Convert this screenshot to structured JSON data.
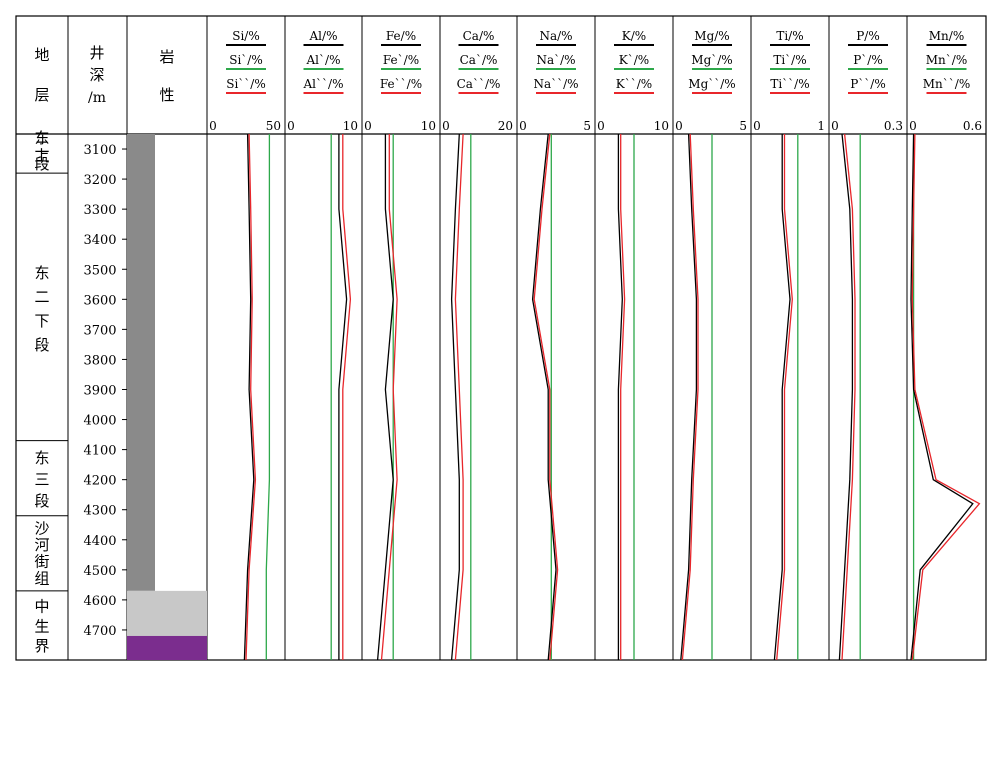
{
  "columns": {
    "strata": "地层",
    "depth": "井深/m",
    "lithology": "岩性"
  },
  "strata": [
    {
      "name": "东二上段",
      "top": 3050,
      "bottom": 3180
    },
    {
      "name": "东二下段",
      "top": 3180,
      "bottom": 4070
    },
    {
      "name": "东三段",
      "top": 4070,
      "bottom": 4320
    },
    {
      "name": "沙河街组",
      "top": 4320,
      "bottom": 4570
    },
    {
      "name": "中生界",
      "top": 4570,
      "bottom": 4800
    }
  ],
  "depth_ticks": [
    3100,
    3200,
    3300,
    3400,
    3500,
    3600,
    3700,
    3800,
    3900,
    4000,
    4100,
    4200,
    4300,
    4400,
    4500,
    4600,
    4700
  ],
  "colors": {
    "black_curve": "#000000",
    "green_curve": "#2da84a",
    "red_curve": "#e8262b",
    "lith_purple": "#7b2d8e",
    "lith_gray": "#8a8a8a"
  },
  "chart_data": {
    "type": "line",
    "y_axis": "井深/m",
    "ylim": [
      3050,
      4800
    ],
    "grid": false,
    "elements": [
      {
        "labels": [
          "Si/%",
          "Si`/%",
          "Si``/%"
        ],
        "ticks": [
          "0",
          "50"
        ],
        "xlim": [
          0,
          50
        ],
        "series": [
          {
            "color": "green",
            "depth": [
              3050,
              3300,
              3600,
              3900,
              4200,
              4500,
              4800
            ],
            "values": [
              40,
              40,
              40,
              40,
              40,
              38,
              38
            ]
          },
          {
            "color": "black",
            "depth": [
              3050,
              3300,
              3600,
              3900,
              4200,
              4500,
              4800
            ],
            "values": [
              26,
              27,
              28,
              27,
              30,
              26,
              24
            ]
          },
          {
            "color": "red",
            "depth": [
              3050,
              3300,
              3600,
              3900,
              4200,
              4500,
              4800
            ],
            "values": [
              27,
              28,
              29,
              28,
              31,
              27,
              25
            ]
          }
        ]
      },
      {
        "labels": [
          "Al/%",
          "Al`/%",
          "Al``/%"
        ],
        "ticks": [
          "0",
          "10"
        ],
        "xlim": [
          0,
          10
        ],
        "series": [
          {
            "color": "green",
            "depth": [
              3050,
              3300,
              3600,
              3900,
              4200,
              4500,
              4800
            ],
            "values": [
              6,
              6,
              6,
              6,
              6,
              6,
              6
            ]
          },
          {
            "color": "black",
            "depth": [
              3050,
              3300,
              3600,
              3900,
              4200,
              4500,
              4800
            ],
            "values": [
              7,
              7,
              8,
              7,
              7,
              7,
              7
            ]
          },
          {
            "color": "red",
            "depth": [
              3050,
              3300,
              3600,
              3900,
              4200,
              4500,
              4800
            ],
            "values": [
              7.5,
              7.5,
              8.5,
              7.5,
              7.5,
              7.5,
              7.5
            ]
          }
        ]
      },
      {
        "labels": [
          "Fe/%",
          "Fe`/%",
          "Fe``/%"
        ],
        "ticks": [
          "0",
          "10"
        ],
        "xlim": [
          0,
          10
        ],
        "series": [
          {
            "color": "green",
            "depth": [
              3050,
              3300,
              3600,
              3900,
              4200,
              4500,
              4800
            ],
            "values": [
              4,
              4,
              4,
              4,
              4,
              4,
              4
            ]
          },
          {
            "color": "black",
            "depth": [
              3050,
              3300,
              3600,
              3900,
              4200,
              4500,
              4800
            ],
            "values": [
              3,
              3,
              4,
              3,
              4,
              3,
              2
            ]
          },
          {
            "color": "red",
            "depth": [
              3050,
              3300,
              3600,
              3900,
              4200,
              4500,
              4800
            ],
            "values": [
              3.5,
              3.5,
              4.5,
              4,
              4.5,
              3.5,
              2.5
            ]
          }
        ]
      },
      {
        "labels": [
          "Ca/%",
          "Ca`/%",
          "Ca``/%"
        ],
        "ticks": [
          "0",
          "20"
        ],
        "xlim": [
          0,
          20
        ],
        "series": [
          {
            "color": "green",
            "depth": [
              3050,
              3300,
              3600,
              3900,
              4200,
              4500,
              4800
            ],
            "values": [
              8,
              8,
              8,
              8,
              8,
              8,
              8
            ]
          },
          {
            "color": "black",
            "depth": [
              3050,
              3300,
              3600,
              3900,
              4200,
              4500,
              4800
            ],
            "values": [
              5,
              4,
              3,
              4,
              5,
              5,
              3
            ]
          },
          {
            "color": "red",
            "depth": [
              3050,
              3300,
              3600,
              3900,
              4200,
              4500,
              4800
            ],
            "values": [
              6,
              5,
              4,
              5,
              6,
              6,
              4
            ]
          }
        ]
      },
      {
        "labels": [
          "Na/%",
          "Na`/%",
          "Na``/%"
        ],
        "ticks": [
          "0",
          "5"
        ],
        "xlim": [
          0,
          5
        ],
        "series": [
          {
            "color": "green",
            "depth": [
              3050,
              3300,
              3600,
              3900,
              4200,
              4500,
              4800
            ],
            "values": [
              2.2,
              2.2,
              2.2,
              2.2,
              2.2,
              2.2,
              2.2
            ]
          },
          {
            "color": "black",
            "depth": [
              3050,
              3300,
              3600,
              3900,
              4200,
              4500,
              4800
            ],
            "values": [
              2,
              1.5,
              1,
              2,
              2,
              2.5,
              2
            ]
          },
          {
            "color": "red",
            "depth": [
              3050,
              3300,
              3600,
              3900,
              4200,
              4500,
              4800
            ],
            "values": [
              2.1,
              1.6,
              1.1,
              2.1,
              2.1,
              2.6,
              2.1
            ]
          }
        ]
      },
      {
        "labels": [
          "K/%",
          "K`/%",
          "K``/%"
        ],
        "ticks": [
          "0",
          "10"
        ],
        "xlim": [
          0,
          10
        ],
        "series": [
          {
            "color": "green",
            "depth": [
              3050,
              3300,
              3600,
              3900,
              4200,
              4500,
              4800
            ],
            "values": [
              5,
              5,
              5,
              5,
              5,
              5,
              5
            ]
          },
          {
            "color": "black",
            "depth": [
              3050,
              3300,
              3600,
              3900,
              4200,
              4500,
              4800
            ],
            "values": [
              3,
              3,
              3.5,
              3,
              3,
              3,
              3
            ]
          },
          {
            "color": "red",
            "depth": [
              3050,
              3300,
              3600,
              3900,
              4200,
              4500,
              4800
            ],
            "values": [
              3.3,
              3.3,
              3.8,
              3.3,
              3.3,
              3.3,
              3.3
            ]
          }
        ]
      },
      {
        "labels": [
          "Mg/%",
          "Mg`/%",
          "Mg``/%"
        ],
        "ticks": [
          "0",
          "5"
        ],
        "xlim": [
          0,
          5
        ],
        "series": [
          {
            "color": "green",
            "depth": [
              3050,
              3300,
              3600,
              3900,
              4200,
              4500,
              4800
            ],
            "values": [
              2.5,
              2.5,
              2.5,
              2.5,
              2.5,
              2.5,
              2.5
            ]
          },
          {
            "color": "black",
            "depth": [
              3050,
              3300,
              3600,
              3900,
              4200,
              4500,
              4800
            ],
            "values": [
              1,
              1.2,
              1.5,
              1.5,
              1.2,
              1,
              0.5
            ]
          },
          {
            "color": "red",
            "depth": [
              3050,
              3300,
              3600,
              3900,
              4200,
              4500,
              4800
            ],
            "values": [
              1.1,
              1.3,
              1.6,
              1.6,
              1.3,
              1.1,
              0.6
            ]
          }
        ]
      },
      {
        "labels": [
          "Ti/%",
          "Ti`/%",
          "Ti``/%"
        ],
        "ticks": [
          "0",
          "1"
        ],
        "xlim": [
          0,
          1
        ],
        "series": [
          {
            "color": "green",
            "depth": [
              3050,
              3300,
              3600,
              3900,
              4200,
              4500,
              4800
            ],
            "values": [
              0.6,
              0.6,
              0.6,
              0.6,
              0.6,
              0.6,
              0.6
            ]
          },
          {
            "color": "black",
            "depth": [
              3050,
              3300,
              3600,
              3900,
              4200,
              4500,
              4800
            ],
            "values": [
              0.4,
              0.4,
              0.5,
              0.4,
              0.4,
              0.4,
              0.3
            ]
          },
          {
            "color": "red",
            "depth": [
              3050,
              3300,
              3600,
              3900,
              4200,
              4500,
              4800
            ],
            "values": [
              0.43,
              0.43,
              0.53,
              0.43,
              0.43,
              0.43,
              0.33
            ]
          }
        ]
      },
      {
        "labels": [
          "P/%",
          "P`/%",
          "P``/%"
        ],
        "ticks": [
          "0",
          "0.3"
        ],
        "xlim": [
          0,
          0.3
        ],
        "series": [
          {
            "color": "green",
            "depth": [
              3050,
              3300,
              3600,
              3900,
              4200,
              4500,
              4800
            ],
            "values": [
              0.12,
              0.12,
              0.12,
              0.12,
              0.12,
              0.12,
              0.12
            ]
          },
          {
            "color": "black",
            "depth": [
              3050,
              3300,
              3600,
              3900,
              4200,
              4500,
              4800
            ],
            "values": [
              0.05,
              0.08,
              0.09,
              0.09,
              0.08,
              0.06,
              0.04
            ]
          },
          {
            "color": "red",
            "depth": [
              3050,
              3300,
              3600,
              3900,
              4200,
              4500,
              4800
            ],
            "values": [
              0.06,
              0.09,
              0.1,
              0.1,
              0.09,
              0.07,
              0.05
            ]
          }
        ]
      },
      {
        "labels": [
          "Mn/%",
          "Mn`/%",
          "Mn``/%"
        ],
        "ticks": [
          "0",
          "0.6"
        ],
        "xlim": [
          0,
          0.6
        ],
        "series": [
          {
            "color": "green",
            "depth": [
              3050,
              3300,
              3600,
              3900,
              4200,
              4500,
              4800
            ],
            "values": [
              0.05,
              0.05,
              0.05,
              0.05,
              0.05,
              0.05,
              0.05
            ]
          },
          {
            "color": "black",
            "depth": [
              3050,
              3300,
              3600,
              3900,
              4200,
              4280,
              4500,
              4800
            ],
            "values": [
              0.05,
              0.04,
              0.03,
              0.05,
              0.2,
              0.5,
              0.1,
              0.03
            ]
          },
          {
            "color": "red",
            "depth": [
              3050,
              3300,
              3600,
              3900,
              4200,
              4280,
              4500,
              4800
            ],
            "values": [
              0.06,
              0.05,
              0.04,
              0.06,
              0.22,
              0.55,
              0.12,
              0.04
            ]
          }
        ]
      }
    ]
  }
}
